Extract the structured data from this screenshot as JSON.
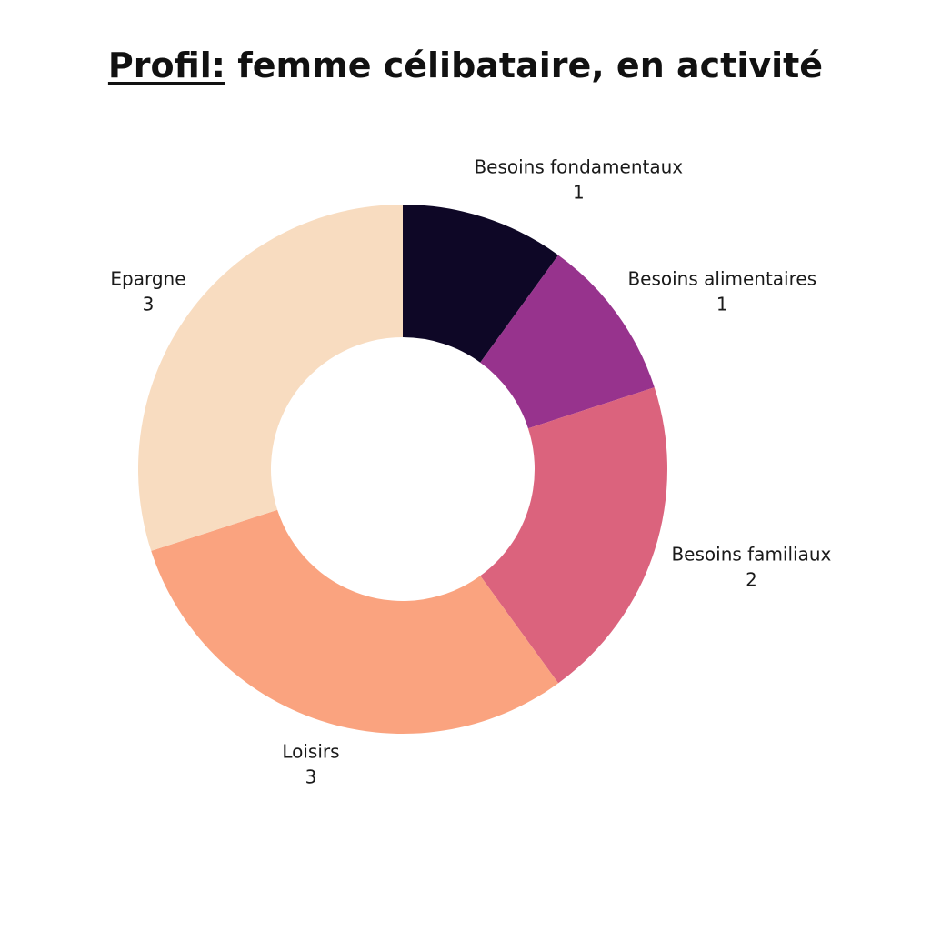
{
  "title": {
    "prefix": "Profil:",
    "text": "femme célibataire, en activité"
  },
  "chart_data": {
    "type": "pie",
    "variant": "donut",
    "start": "top",
    "direction": "clockwise",
    "slices": [
      {
        "label": "Besoins fondamentaux",
        "value": 1,
        "color": "#0e0726"
      },
      {
        "label": "Besoins alimentaires",
        "value": 1,
        "color": "#97338d"
      },
      {
        "label": "Besoins familiaux",
        "value": 2,
        "color": "#db637d"
      },
      {
        "label": "Loisirs",
        "value": 3,
        "color": "#faa37f"
      },
      {
        "label": "Epargne",
        "value": 3,
        "color": "#f8dcc0"
      }
    ]
  }
}
